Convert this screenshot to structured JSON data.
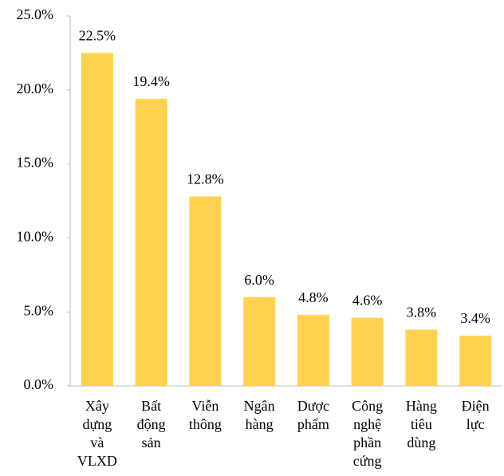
{
  "chart_data": {
    "type": "bar",
    "categories": [
      "Xây dựng và VLXD",
      "Bất động sản",
      "Viễn thông",
      "Ngân hàng",
      "Dược phẩm",
      "Công nghệ phần cứng",
      "Hàng tiêu dùng",
      "Điện lực"
    ],
    "values": [
      22.5,
      19.4,
      12.8,
      6.0,
      4.8,
      4.6,
      3.8,
      3.4
    ],
    "value_labels": [
      "22.5%",
      "19.4%",
      "12.8%",
      "6.0%",
      "4.8%",
      "4.6%",
      "3.8%",
      "3.4%"
    ],
    "color": "#FFD34F",
    "ylim": [
      0,
      25
    ],
    "yticks": [
      {
        "value": 0,
        "label": "0.0%"
      },
      {
        "value": 5,
        "label": "5.0%"
      },
      {
        "value": 10,
        "label": "10.0%"
      },
      {
        "value": 15,
        "label": "15.0%"
      },
      {
        "value": 20,
        "label": "20.0%"
      },
      {
        "value": 25,
        "label": "25.0%"
      }
    ]
  }
}
